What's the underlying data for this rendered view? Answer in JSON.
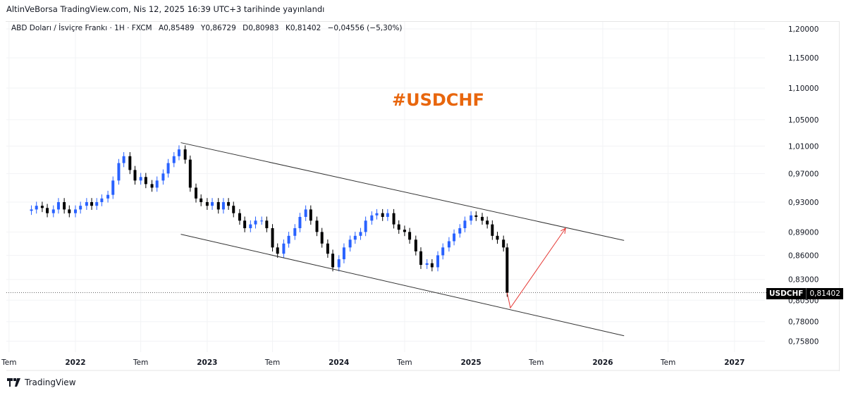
{
  "header": {
    "publish_line": "AltinVeBorsa TradingView.com, Nis 12, 2025 16:39 UTC+3 tarihinde yayınlandı"
  },
  "legend": {
    "symbol_desc": "ABD Doları / İsviçre Frankı · 1H · FXCM",
    "open": "A0,85489",
    "high": "Y0,86729",
    "low": "D0,80983",
    "close": "K0,81402",
    "change": "−0,04556 (−5,30%)"
  },
  "annotation": {
    "text": "#USDCHF",
    "color": "#e8660d"
  },
  "price_badge": {
    "symbol": "USDCHF",
    "price": "0,81402"
  },
  "footer": {
    "brand": "TradingView",
    "logo": "tradingview-logo-icon"
  },
  "colors": {
    "up": "#2962ff",
    "down": "#000000",
    "channel": "#333333",
    "arrow": "#e53935"
  },
  "chart_data": {
    "type": "candlestick",
    "scale": "log",
    "ylim": [
      0.745,
      1.215
    ],
    "grid": true,
    "y_ticks": [
      {
        "v": 1.2,
        "label": "1,20000"
      },
      {
        "v": 1.15,
        "label": "1,15000"
      },
      {
        "v": 1.1,
        "label": "1,10000"
      },
      {
        "v": 1.05,
        "label": "1,05000"
      },
      {
        "v": 1.01,
        "label": "1,01000"
      },
      {
        "v": 0.97,
        "label": "0,97000"
      },
      {
        "v": 0.93,
        "label": "0,93000"
      },
      {
        "v": 0.89,
        "label": "0,89000"
      },
      {
        "v": 0.86,
        "label": "0,86000"
      },
      {
        "v": 0.83,
        "label": "0,83000"
      },
      {
        "v": 0.805,
        "label": "0,80500"
      },
      {
        "v": 0.78,
        "label": "0,78000"
      },
      {
        "v": 0.758,
        "label": "0,75800"
      }
    ],
    "x_ticks": [
      {
        "d": "2021-07-01",
        "label": "Tem",
        "major": false
      },
      {
        "d": "2022-01-01",
        "label": "2022",
        "major": true
      },
      {
        "d": "2022-07-01",
        "label": "Tem",
        "major": false
      },
      {
        "d": "2023-01-01",
        "label": "2023",
        "major": true
      },
      {
        "d": "2023-07-01",
        "label": "Tem",
        "major": false
      },
      {
        "d": "2024-01-01",
        "label": "2024",
        "major": true
      },
      {
        "d": "2024-07-01",
        "label": "Tem",
        "major": false
      },
      {
        "d": "2025-01-01",
        "label": "2025",
        "major": true
      },
      {
        "d": "2025-07-01",
        "label": "Tem",
        "major": false
      },
      {
        "d": "2026-01-01",
        "label": "2026",
        "major": true
      },
      {
        "d": "2026-07-01",
        "label": "Tem",
        "major": false
      },
      {
        "d": "2027-01-01",
        "label": "2027",
        "major": true
      }
    ],
    "closes": [
      [
        "2021-09-01",
        0.92
      ],
      [
        "2021-09-15",
        0.925
      ],
      [
        "2021-10-01",
        0.922
      ],
      [
        "2021-10-15",
        0.915
      ],
      [
        "2021-11-01",
        0.92
      ],
      [
        "2021-11-15",
        0.93
      ],
      [
        "2021-12-01",
        0.92
      ],
      [
        "2021-12-15",
        0.915
      ],
      [
        "2022-01-01",
        0.92
      ],
      [
        "2022-01-15",
        0.925
      ],
      [
        "2022-02-01",
        0.93
      ],
      [
        "2022-02-15",
        0.925
      ],
      [
        "2022-03-01",
        0.93
      ],
      [
        "2022-03-15",
        0.935
      ],
      [
        "2022-04-01",
        0.94
      ],
      [
        "2022-04-15",
        0.96
      ],
      [
        "2022-05-01",
        0.985
      ],
      [
        "2022-05-15",
        0.995
      ],
      [
        "2022-06-01",
        0.975
      ],
      [
        "2022-06-15",
        0.96
      ],
      [
        "2022-07-01",
        0.965
      ],
      [
        "2022-07-15",
        0.955
      ],
      [
        "2022-08-01",
        0.95
      ],
      [
        "2022-08-15",
        0.96
      ],
      [
        "2022-09-01",
        0.97
      ],
      [
        "2022-09-15",
        0.985
      ],
      [
        "2022-10-01",
        0.995
      ],
      [
        "2022-10-15",
        1.005
      ],
      [
        "2022-11-01",
        0.99
      ],
      [
        "2022-11-15",
        0.95
      ],
      [
        "2022-12-01",
        0.935
      ],
      [
        "2022-12-15",
        0.93
      ],
      [
        "2023-01-01",
        0.925
      ],
      [
        "2023-01-15",
        0.93
      ],
      [
        "2023-02-01",
        0.92
      ],
      [
        "2023-02-15",
        0.93
      ],
      [
        "2023-03-01",
        0.925
      ],
      [
        "2023-03-15",
        0.915
      ],
      [
        "2023-04-01",
        0.905
      ],
      [
        "2023-04-15",
        0.895
      ],
      [
        "2023-05-01",
        0.9
      ],
      [
        "2023-05-15",
        0.905
      ],
      [
        "2023-06-01",
        0.905
      ],
      [
        "2023-06-15",
        0.895
      ],
      [
        "2023-07-01",
        0.87
      ],
      [
        "2023-07-15",
        0.862
      ],
      [
        "2023-08-01",
        0.875
      ],
      [
        "2023-08-15",
        0.885
      ],
      [
        "2023-09-01",
        0.895
      ],
      [
        "2023-09-15",
        0.91
      ],
      [
        "2023-10-01",
        0.92
      ],
      [
        "2023-10-15",
        0.905
      ],
      [
        "2023-11-01",
        0.89
      ],
      [
        "2023-11-15",
        0.875
      ],
      [
        "2023-12-01",
        0.862
      ],
      [
        "2023-12-15",
        0.845
      ],
      [
        "2024-01-01",
        0.855
      ],
      [
        "2024-01-15",
        0.87
      ],
      [
        "2024-02-01",
        0.88
      ],
      [
        "2024-02-15",
        0.885
      ],
      [
        "2024-03-01",
        0.89
      ],
      [
        "2024-03-15",
        0.905
      ],
      [
        "2024-04-01",
        0.912
      ],
      [
        "2024-04-15",
        0.915
      ],
      [
        "2024-05-01",
        0.91
      ],
      [
        "2024-05-15",
        0.915
      ],
      [
        "2024-06-01",
        0.9
      ],
      [
        "2024-06-15",
        0.893
      ],
      [
        "2024-07-01",
        0.89
      ],
      [
        "2024-07-15",
        0.88
      ],
      [
        "2024-08-01",
        0.865
      ],
      [
        "2024-08-15",
        0.848
      ],
      [
        "2024-09-01",
        0.85
      ],
      [
        "2024-09-15",
        0.845
      ],
      [
        "2024-10-01",
        0.86
      ],
      [
        "2024-10-15",
        0.87
      ],
      [
        "2024-11-01",
        0.878
      ],
      [
        "2024-11-15",
        0.888
      ],
      [
        "2024-12-01",
        0.895
      ],
      [
        "2024-12-15",
        0.905
      ],
      [
        "2025-01-01",
        0.912
      ],
      [
        "2025-01-15",
        0.91
      ],
      [
        "2025-02-01",
        0.905
      ],
      [
        "2025-02-15",
        0.9
      ],
      [
        "2025-03-01",
        0.885
      ],
      [
        "2025-03-15",
        0.88
      ],
      [
        "2025-04-01",
        0.87
      ],
      [
        "2025-04-11",
        0.814
      ]
    ],
    "last_price": 0.81402,
    "channel": {
      "upper": [
        [
          "2022-10-20",
          1.015
        ],
        [
          "2026-03-01",
          0.879
        ]
      ],
      "lower": [
        [
          "2022-10-20",
          0.887
        ],
        [
          "2026-03-01",
          0.764
        ]
      ]
    },
    "projection_arrow": [
      [
        "2025-04-11",
        0.814
      ],
      [
        "2025-04-20",
        0.796
      ],
      [
        "2025-09-20",
        0.895
      ]
    ]
  }
}
